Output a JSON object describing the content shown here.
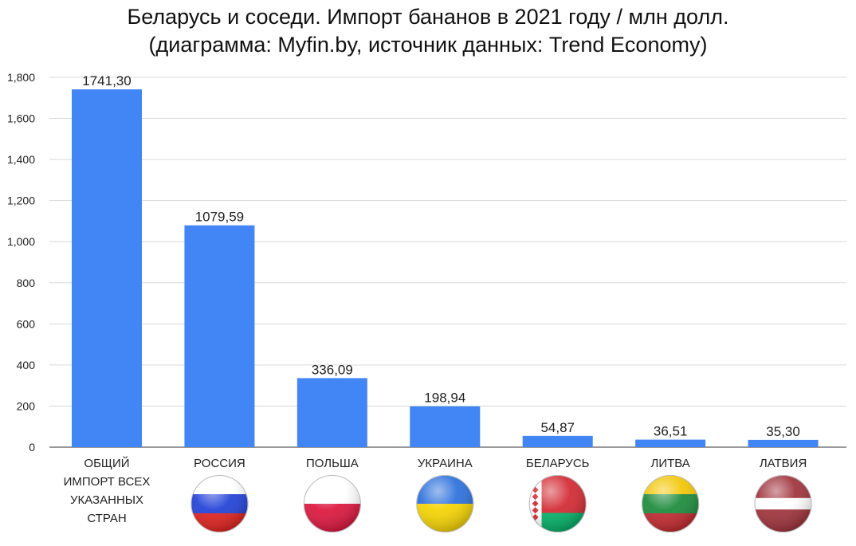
{
  "title_line1": "Беларусь и соседи. Импорт бананов в 2021 году / млн долл.",
  "title_line2": "(диаграмма: Myfin.by, источник данных: Trend Economy)",
  "chart_data": {
    "type": "bar",
    "title": "Беларусь и соседи. Импорт бананов в 2021 году / млн долл. (диаграмма: Myfin.by, источник данных: Trend Economy)",
    "categories": [
      [
        "ОБЩИЙ",
        "ИМПОРТ ВСЕХ",
        "УКАЗАННЫХ",
        "СТРАН"
      ],
      [
        "РОССИЯ"
      ],
      [
        "ПОЛЬША"
      ],
      [
        "УКРАИНА"
      ],
      [
        "БЕЛАРУСЬ"
      ],
      [
        "ЛИТВА"
      ],
      [
        "ЛАТВИЯ"
      ]
    ],
    "values": [
      1741.3,
      1079.59,
      336.09,
      198.94,
      54.87,
      36.51,
      35.3
    ],
    "value_labels": [
      "1741,30",
      "1079,59",
      "336,09",
      "198,94",
      "54,87",
      "36,51",
      "35,30"
    ],
    "flags": [
      "",
      "russia-flag",
      "poland-flag",
      "ukraine-flag",
      "belarus-flag",
      "lithuania-flag",
      "latvia-flag"
    ],
    "yticks": [
      0,
      200,
      400,
      600,
      800,
      1000,
      1200,
      1400,
      1600,
      1800
    ],
    "ytick_labels": [
      "0",
      "200",
      "400",
      "600",
      "800",
      "1,000",
      "1,200",
      "1,400",
      "1,600",
      "1,800"
    ],
    "ylim": [
      0,
      1800
    ],
    "grid": true,
    "legend": "none",
    "bar_color": "#4285f4",
    "grid_color": "#d9d9d9",
    "text_color": "#222222",
    "xlabel": "",
    "ylabel": ""
  }
}
